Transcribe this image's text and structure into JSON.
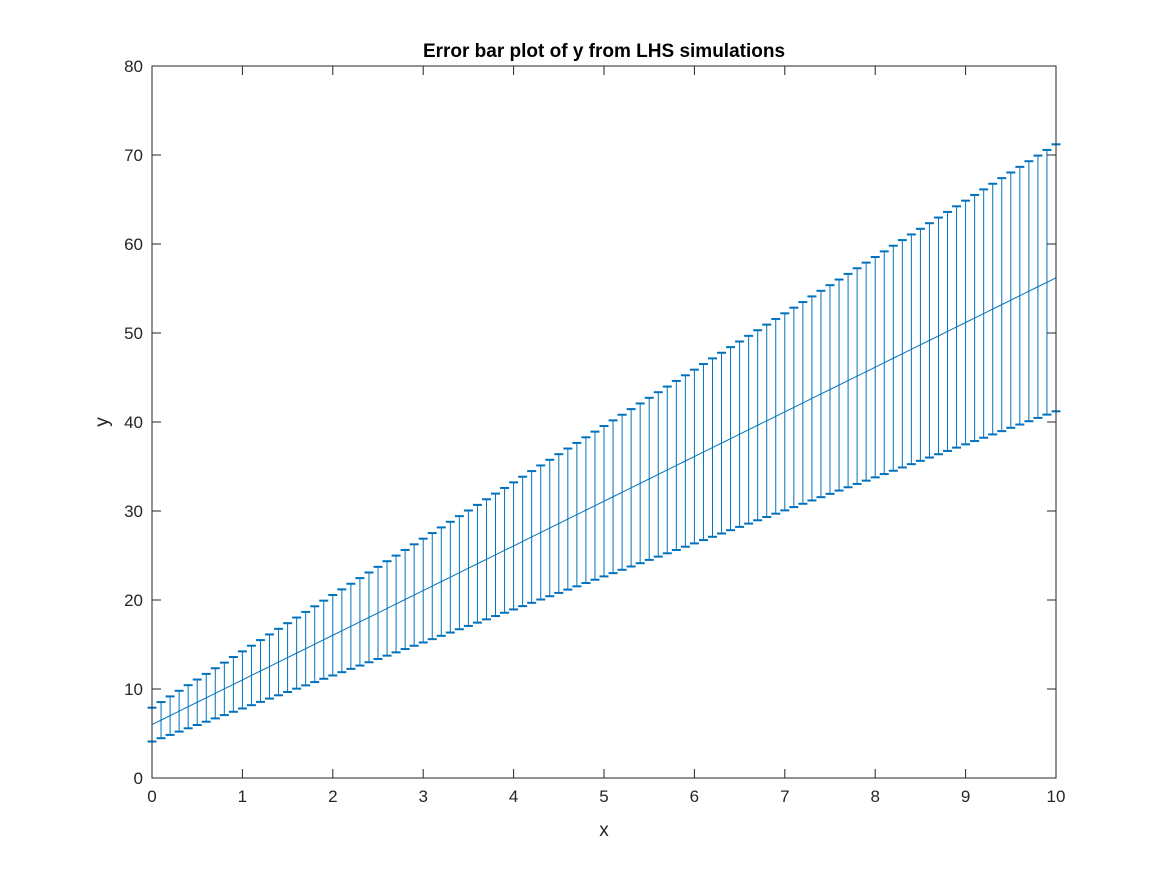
{
  "chart_data": {
    "type": "errorbar",
    "title": "Error bar plot of y from LHS simulations",
    "xlabel": "x",
    "ylabel": "y",
    "xlim": [
      0,
      10
    ],
    "ylim": [
      0,
      80
    ],
    "xticks": [
      "0",
      "1",
      "2",
      "3",
      "4",
      "5",
      "6",
      "7",
      "8",
      "9",
      "10"
    ],
    "yticks": [
      "0",
      "10",
      "20",
      "30",
      "40",
      "50",
      "60",
      "70",
      "80"
    ],
    "grid": false,
    "series_color": "#0072BD",
    "series": [
      {
        "x_start": 0,
        "x_end": 10,
        "x_step": 0.1,
        "mean_start": 6.0,
        "mean_end": 56.2,
        "upper_start": 7.9,
        "upper_end": 71.2,
        "lower_start": 4.1,
        "lower_end": 41.2
      }
    ]
  }
}
